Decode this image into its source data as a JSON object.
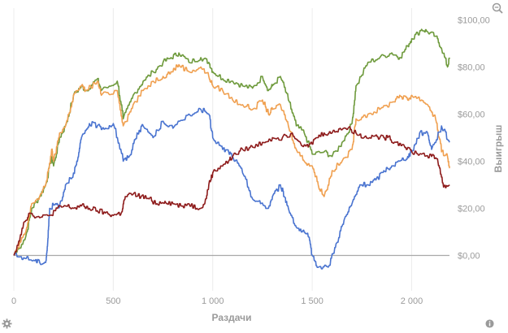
{
  "chart_data": {
    "type": "line",
    "xlabel": "Раздачи",
    "ylabel": "Выигрыш",
    "x_ticks": [
      "0",
      "500",
      "1 000",
      "1 500",
      "2 000"
    ],
    "y_ticks": [
      "$0,00",
      "$20,00",
      "$40,00",
      "$60,00",
      "$80,00",
      "$100,00"
    ],
    "xlim": [
      0,
      2190
    ],
    "ylim": [
      -15,
      105
    ],
    "grid": "vertical",
    "axis_side": "right",
    "series": [
      {
        "color": "#6e9a3c",
        "x": [
          0,
          60,
          90,
          130,
          160,
          190,
          200,
          230,
          260,
          300,
          340,
          360,
          420,
          440,
          520,
          550,
          600,
          650,
          700,
          750,
          790,
          830,
          880,
          940,
          980,
          1000,
          1050,
          1100,
          1150,
          1200,
          1250,
          1280,
          1300,
          1340,
          1380,
          1420,
          1460,
          1500,
          1560,
          1600,
          1650,
          1700,
          1720,
          1780,
          1840,
          1900,
          1940,
          1980,
          2000,
          2050,
          2080,
          2120,
          2150,
          2180,
          2190
        ],
        "y": [
          0,
          8,
          20,
          25,
          30,
          42,
          38,
          50,
          55,
          68,
          72,
          70,
          75,
          70,
          74,
          58,
          68,
          74,
          78,
          82,
          84,
          86,
          82,
          84,
          82,
          78,
          75,
          74,
          72,
          71,
          76,
          70,
          72,
          76,
          66,
          55,
          52,
          43,
          44,
          42,
          48,
          56,
          72,
          82,
          84,
          86,
          84,
          89,
          92,
          96,
          95,
          93,
          88,
          80,
          84
        ]
      },
      {
        "color": "#f0a050",
        "x": [
          0,
          60,
          90,
          130,
          160,
          190,
          200,
          230,
          260,
          300,
          340,
          360,
          420,
          440,
          520,
          550,
          600,
          650,
          700,
          750,
          790,
          830,
          880,
          940,
          980,
          1000,
          1050,
          1100,
          1150,
          1200,
          1250,
          1280,
          1300,
          1340,
          1380,
          1420,
          1460,
          1500,
          1530,
          1560,
          1600,
          1650,
          1700,
          1720,
          1780,
          1840,
          1900,
          1940,
          1980,
          2000,
          2050,
          2080,
          2120,
          2150,
          2180,
          2190
        ],
        "y": [
          0,
          10,
          22,
          25,
          30,
          45,
          40,
          52,
          55,
          68,
          72,
          70,
          74,
          68,
          70,
          55,
          64,
          70,
          74,
          76,
          78,
          81,
          78,
          80,
          76,
          72,
          70,
          66,
          64,
          62,
          66,
          60,
          62,
          64,
          55,
          45,
          40,
          38,
          30,
          25,
          36,
          40,
          45,
          58,
          60,
          62,
          65,
          68,
          66,
          68,
          66,
          64,
          58,
          44,
          42,
          37
        ]
      },
      {
        "color": "#4a74d0",
        "x": [
          0,
          50,
          100,
          130,
          160,
          170,
          180,
          210,
          230,
          260,
          300,
          320,
          340,
          380,
          420,
          460,
          500,
          550,
          580,
          620,
          650,
          700,
          750,
          800,
          880,
          940,
          980,
          1000,
          1050,
          1080,
          1100,
          1150,
          1200,
          1240,
          1280,
          1300,
          1340,
          1360,
          1380,
          1420,
          1450,
          1480,
          1500,
          1530,
          1580,
          1620,
          1660,
          1700,
          1740,
          1780,
          1820,
          1860,
          1900,
          1940,
          1980,
          2000,
          2040,
          2080,
          2100,
          2150,
          2190
        ],
        "y": [
          0,
          -1,
          -2,
          -3,
          -3,
          5,
          20,
          22,
          21,
          30,
          35,
          40,
          50,
          56,
          55,
          54,
          56,
          40,
          42,
          52,
          55,
          50,
          57,
          54,
          60,
          62,
          60,
          50,
          45,
          44,
          42,
          35,
          24,
          22,
          20,
          25,
          30,
          25,
          20,
          12,
          10,
          8,
          0,
          -5,
          -5,
          5,
          15,
          22,
          30,
          30,
          32,
          36,
          38,
          40,
          42,
          44,
          52,
          52,
          45,
          55,
          48
        ]
      },
      {
        "color": "#8e1c1c",
        "x": [
          0,
          50,
          80,
          130,
          180,
          220,
          260,
          300,
          340,
          380,
          420,
          460,
          500,
          540,
          560,
          600,
          640,
          680,
          720,
          760,
          800,
          840,
          880,
          920,
          960,
          980,
          1000,
          1040,
          1080,
          1100,
          1150,
          1200,
          1250,
          1300,
          1350,
          1400,
          1440,
          1480,
          1520,
          1560,
          1600,
          1640,
          1680,
          1720,
          1760,
          1800,
          1840,
          1880,
          1920,
          1960,
          2000,
          2050,
          2100,
          2130,
          2160,
          2190
        ],
        "y": [
          0,
          14,
          18,
          16,
          17,
          20,
          21,
          20,
          21,
          20,
          19,
          18,
          17,
          18,
          25,
          26,
          25,
          24,
          22,
          23,
          22,
          21,
          22,
          20,
          22,
          30,
          35,
          38,
          40,
          42,
          45,
          46,
          48,
          50,
          50,
          52,
          48,
          46,
          50,
          52,
          52,
          54,
          54,
          52,
          50,
          51,
          50,
          50,
          48,
          47,
          44,
          43,
          42,
          41,
          29,
          30
        ]
      }
    ]
  }
}
